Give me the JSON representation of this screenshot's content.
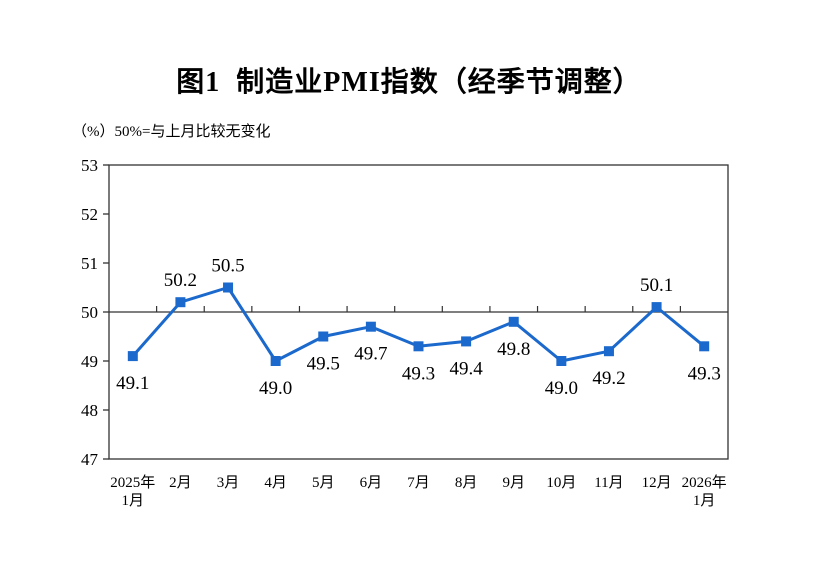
{
  "chart_data": {
    "type": "line",
    "title": "图1  制造业PMI指数（经季节调整）",
    "unit_note": "（%）50%=与上月比较无变化",
    "categories": [
      "2025年\n1月",
      "2月",
      "3月",
      "4月",
      "5月",
      "6月",
      "7月",
      "8月",
      "9月",
      "10月",
      "11月",
      "12月",
      "2026年\n1月"
    ],
    "series": [
      {
        "name": "制造业PMI指数（经季节调整）",
        "values": [
          49.1,
          50.2,
          50.5,
          49.0,
          49.5,
          49.7,
          49.3,
          49.4,
          49.8,
          49.0,
          49.2,
          50.1,
          49.3
        ]
      }
    ],
    "data_labels": [
      "49.1",
      "50.2",
      "50.5",
      "49.0",
      "49.5",
      "49.7",
      "49.3",
      "49.4",
      "49.8",
      "49.0",
      "49.2",
      "50.1",
      "49.3"
    ],
    "label_positions": [
      "below",
      "above",
      "above",
      "below",
      "below",
      "below",
      "below",
      "below",
      "below",
      "below",
      "below",
      "above",
      "below"
    ],
    "ylim": [
      47,
      53
    ],
    "ytick_step": 1,
    "yticks": [
      "47",
      "48",
      "49",
      "50",
      "51",
      "52",
      "53"
    ],
    "baseline_value": 50,
    "grid": "off",
    "legend": "none",
    "line_color": "#1b69cc",
    "axis_color": "#333333",
    "text_color": "#000000",
    "marker": "square"
  }
}
